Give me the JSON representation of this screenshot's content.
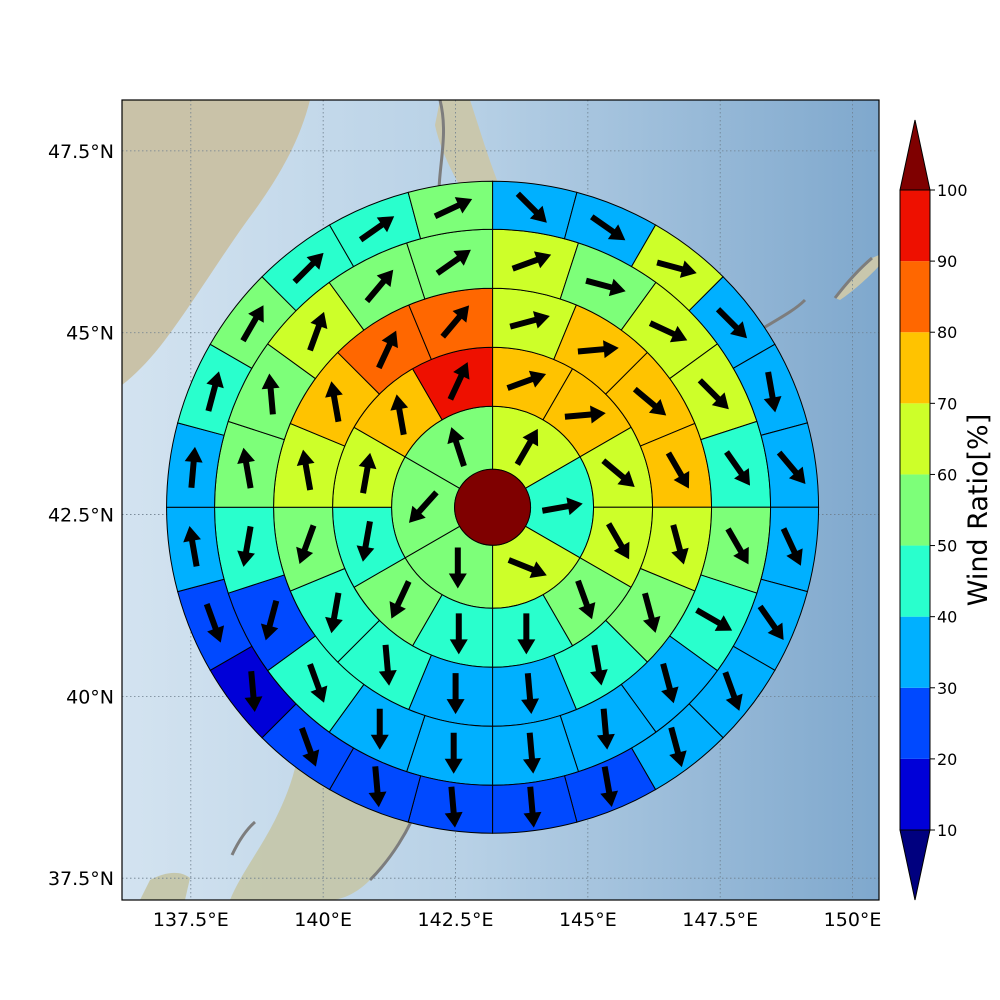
{
  "chart_data": {
    "type": "heatmap",
    "subtype": "polar-sector wind-ratio map with wind-direction arrows",
    "colorbar": {
      "label": "Wind Ratio[%]",
      "ticks": [
        "10",
        "20",
        "30",
        "40",
        "50",
        "60",
        "70",
        "80",
        "90",
        "100"
      ],
      "range": [
        10,
        100
      ],
      "extend": "both",
      "colors": [
        "#00007f",
        "#0000d8",
        "#0049ff",
        "#00b0ff",
        "#29ffcd",
        "#7dff79",
        "#cdff29",
        "#ffc300",
        "#ff6700",
        "#ee1000",
        "#7f0000"
      ]
    },
    "lon_ticks": [
      "137.5°E",
      "140°E",
      "142.5°E",
      "145°E",
      "147.5°E",
      "150°E"
    ],
    "lat_ticks": [
      "47.5°N",
      "45°N",
      "42.5°N",
      "40°N",
      "37.5°N"
    ],
    "lon_values": [
      137.5,
      140,
      142.5,
      145,
      147.5,
      150
    ],
    "lat_values": [
      47.5,
      45,
      42.5,
      40,
      37.5
    ],
    "xlim": [
      136.2,
      150.5
    ],
    "ylim": [
      37.2,
      48.2
    ],
    "center": {
      "lon": 143.2,
      "lat": 42.6,
      "value": 100
    },
    "grid": true,
    "rings": [
      {
        "ring": 1,
        "sectors": 6,
        "values": [
          65,
          45,
          65,
          55,
          55,
          55
        ],
        "arrow_dir": [
          30,
          80,
          112,
          180,
          222,
          342
        ]
      },
      {
        "ring": 2,
        "sectors": 12,
        "values": [
          75,
          75,
          62,
          62,
          55,
          45,
          45,
          55,
          45,
          62,
          75,
          95
        ],
        "arrow_dir": [
          70,
          85,
          130,
          150,
          160,
          180,
          180,
          205,
          190,
          10,
          350,
          25
        ]
      },
      {
        "ring": 3,
        "sectors": 16,
        "values": [
          62,
          78,
          75,
          75,
          62,
          52,
          40,
          37,
          37,
          40,
          42,
          52,
          62,
          75,
          85,
          85
        ],
        "arrow_dir": [
          75,
          85,
          130,
          150,
          165,
          165,
          170,
          175,
          180,
          175,
          190,
          200,
          350,
          350,
          25,
          40
        ]
      },
      {
        "ring": 4,
        "sectors": 20,
        "values": [
          62,
          55,
          62,
          62,
          42,
          55,
          45,
          37,
          37,
          37,
          37,
          37,
          45,
          25,
          45,
          55,
          55,
          62,
          55,
          52
        ],
        "arrow_dir": [
          70,
          105,
          115,
          135,
          145,
          150,
          120,
          165,
          175,
          175,
          180,
          180,
          160,
          195,
          190,
          350,
          355,
          20,
          40,
          55
        ]
      },
      {
        "ring": 5,
        "sectors": 24,
        "values": [
          37,
          37,
          62,
          37,
          37,
          37,
          37,
          37,
          37,
          30,
          25,
          25,
          25,
          25,
          25,
          15,
          25,
          37,
          37,
          45,
          55,
          45,
          45,
          55
        ],
        "arrow_dir": [
          135,
          125,
          105,
          135,
          170,
          140,
          155,
          145,
          160,
          165,
          170,
          175,
          175,
          175,
          160,
          175,
          160,
          350,
          5,
          15,
          30,
          45,
          55,
          65
        ]
      }
    ]
  }
}
